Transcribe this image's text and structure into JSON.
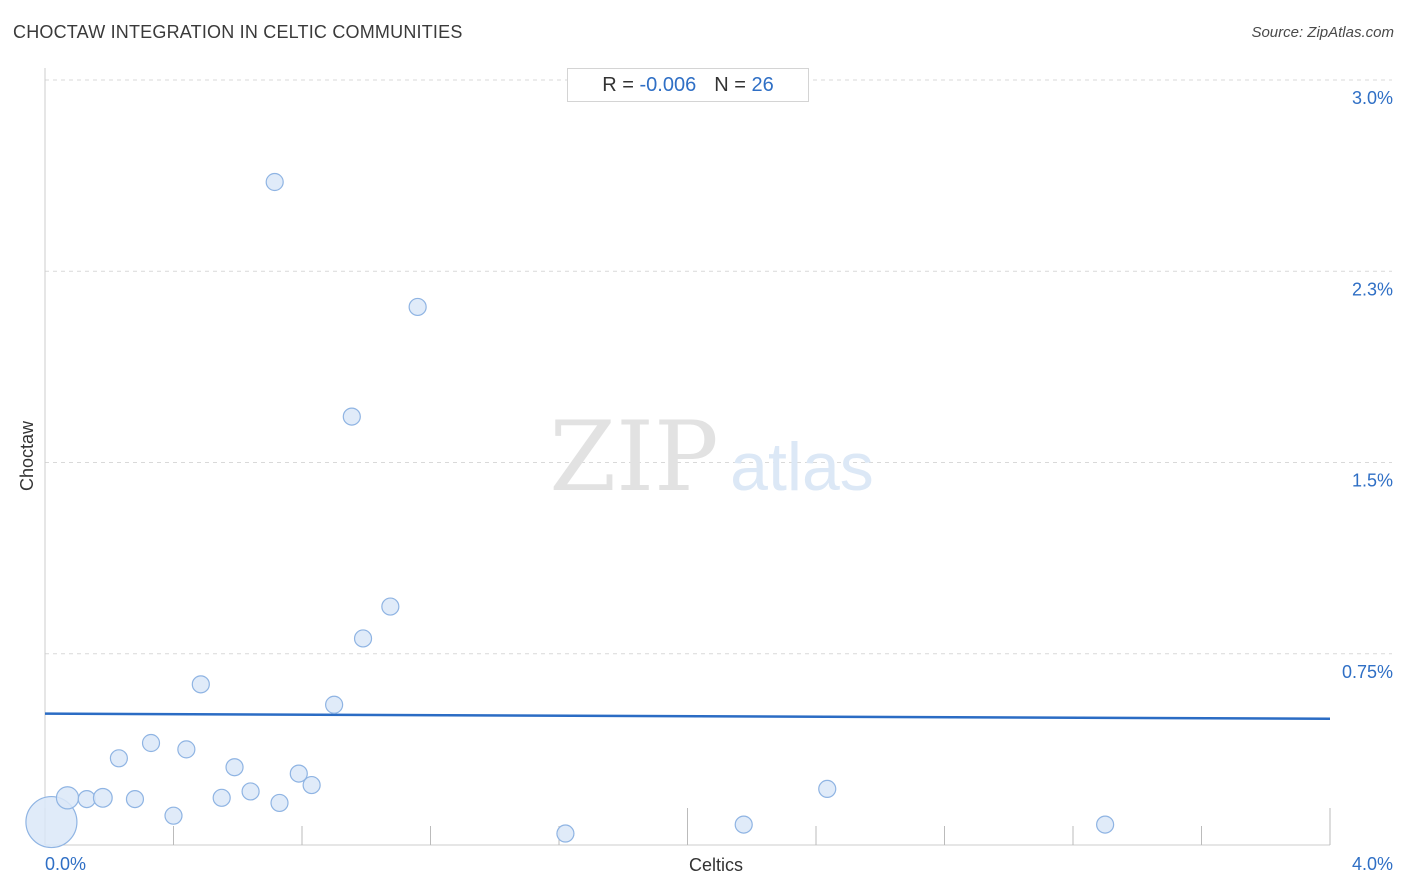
{
  "title": "CHOCTAW INTEGRATION IN CELTIC COMMUNITIES",
  "source": "Source: ZipAtlas.com",
  "stats": {
    "r_label": "R =",
    "r_value": "-0.006",
    "n_label": "N =",
    "n_value": "26"
  },
  "watermark": {
    "zip": "ZIP",
    "atlas": "atlas"
  },
  "colors": {
    "accent": "#2f6fc5",
    "trend": "#2b6cc4",
    "point_fill": "#dbe8f8",
    "point_stroke": "#8fb4e3"
  },
  "chart_data": {
    "type": "scatter",
    "xlabel": "Celtics",
    "ylabel": "Choctaw",
    "xlim": [
      0,
      4.0
    ],
    "ylim": [
      0,
      3.0
    ],
    "x_tick_labels": [
      {
        "value": 0,
        "label": "0.0%"
      },
      {
        "value": 4.0,
        "label": "4.0%"
      }
    ],
    "y_tick_labels": [
      {
        "value": 0.75,
        "label": "0.75%"
      },
      {
        "value": 1.5,
        "label": "1.5%"
      },
      {
        "value": 2.25,
        "label": "2.3%"
      },
      {
        "value": 3.0,
        "label": "3.0%"
      }
    ],
    "grid": true,
    "trend_line": {
      "x": [
        0,
        4.0
      ],
      "y": [
        0.515,
        0.495
      ]
    },
    "points": [
      {
        "x": 0.02,
        "y": 0.09,
        "size": 3
      },
      {
        "x": 0.07,
        "y": 0.185,
        "size": 1.3
      },
      {
        "x": 0.13,
        "y": 0.18,
        "size": 1
      },
      {
        "x": 0.18,
        "y": 0.185,
        "size": 1.1
      },
      {
        "x": 0.23,
        "y": 0.34,
        "size": 1
      },
      {
        "x": 0.28,
        "y": 0.18,
        "size": 1
      },
      {
        "x": 0.33,
        "y": 0.4,
        "size": 1
      },
      {
        "x": 0.4,
        "y": 0.115,
        "size": 1
      },
      {
        "x": 0.44,
        "y": 0.375,
        "size": 1
      },
      {
        "x": 0.485,
        "y": 0.63,
        "size": 1
      },
      {
        "x": 0.55,
        "y": 0.185,
        "size": 1
      },
      {
        "x": 0.59,
        "y": 0.305,
        "size": 1
      },
      {
        "x": 0.64,
        "y": 0.21,
        "size": 1
      },
      {
        "x": 0.715,
        "y": 2.6,
        "size": 1
      },
      {
        "x": 0.73,
        "y": 0.165,
        "size": 1
      },
      {
        "x": 0.79,
        "y": 0.28,
        "size": 1
      },
      {
        "x": 0.83,
        "y": 0.235,
        "size": 1
      },
      {
        "x": 0.9,
        "y": 0.55,
        "size": 1
      },
      {
        "x": 0.955,
        "y": 1.68,
        "size": 1
      },
      {
        "x": 0.99,
        "y": 0.81,
        "size": 1
      },
      {
        "x": 1.075,
        "y": 0.935,
        "size": 1
      },
      {
        "x": 1.16,
        "y": 2.11,
        "size": 1
      },
      {
        "x": 1.62,
        "y": 0.045,
        "size": 1
      },
      {
        "x": 2.175,
        "y": 0.08,
        "size": 1
      },
      {
        "x": 2.435,
        "y": 0.22,
        "size": 1
      },
      {
        "x": 3.3,
        "y": 0.08,
        "size": 1
      }
    ]
  }
}
